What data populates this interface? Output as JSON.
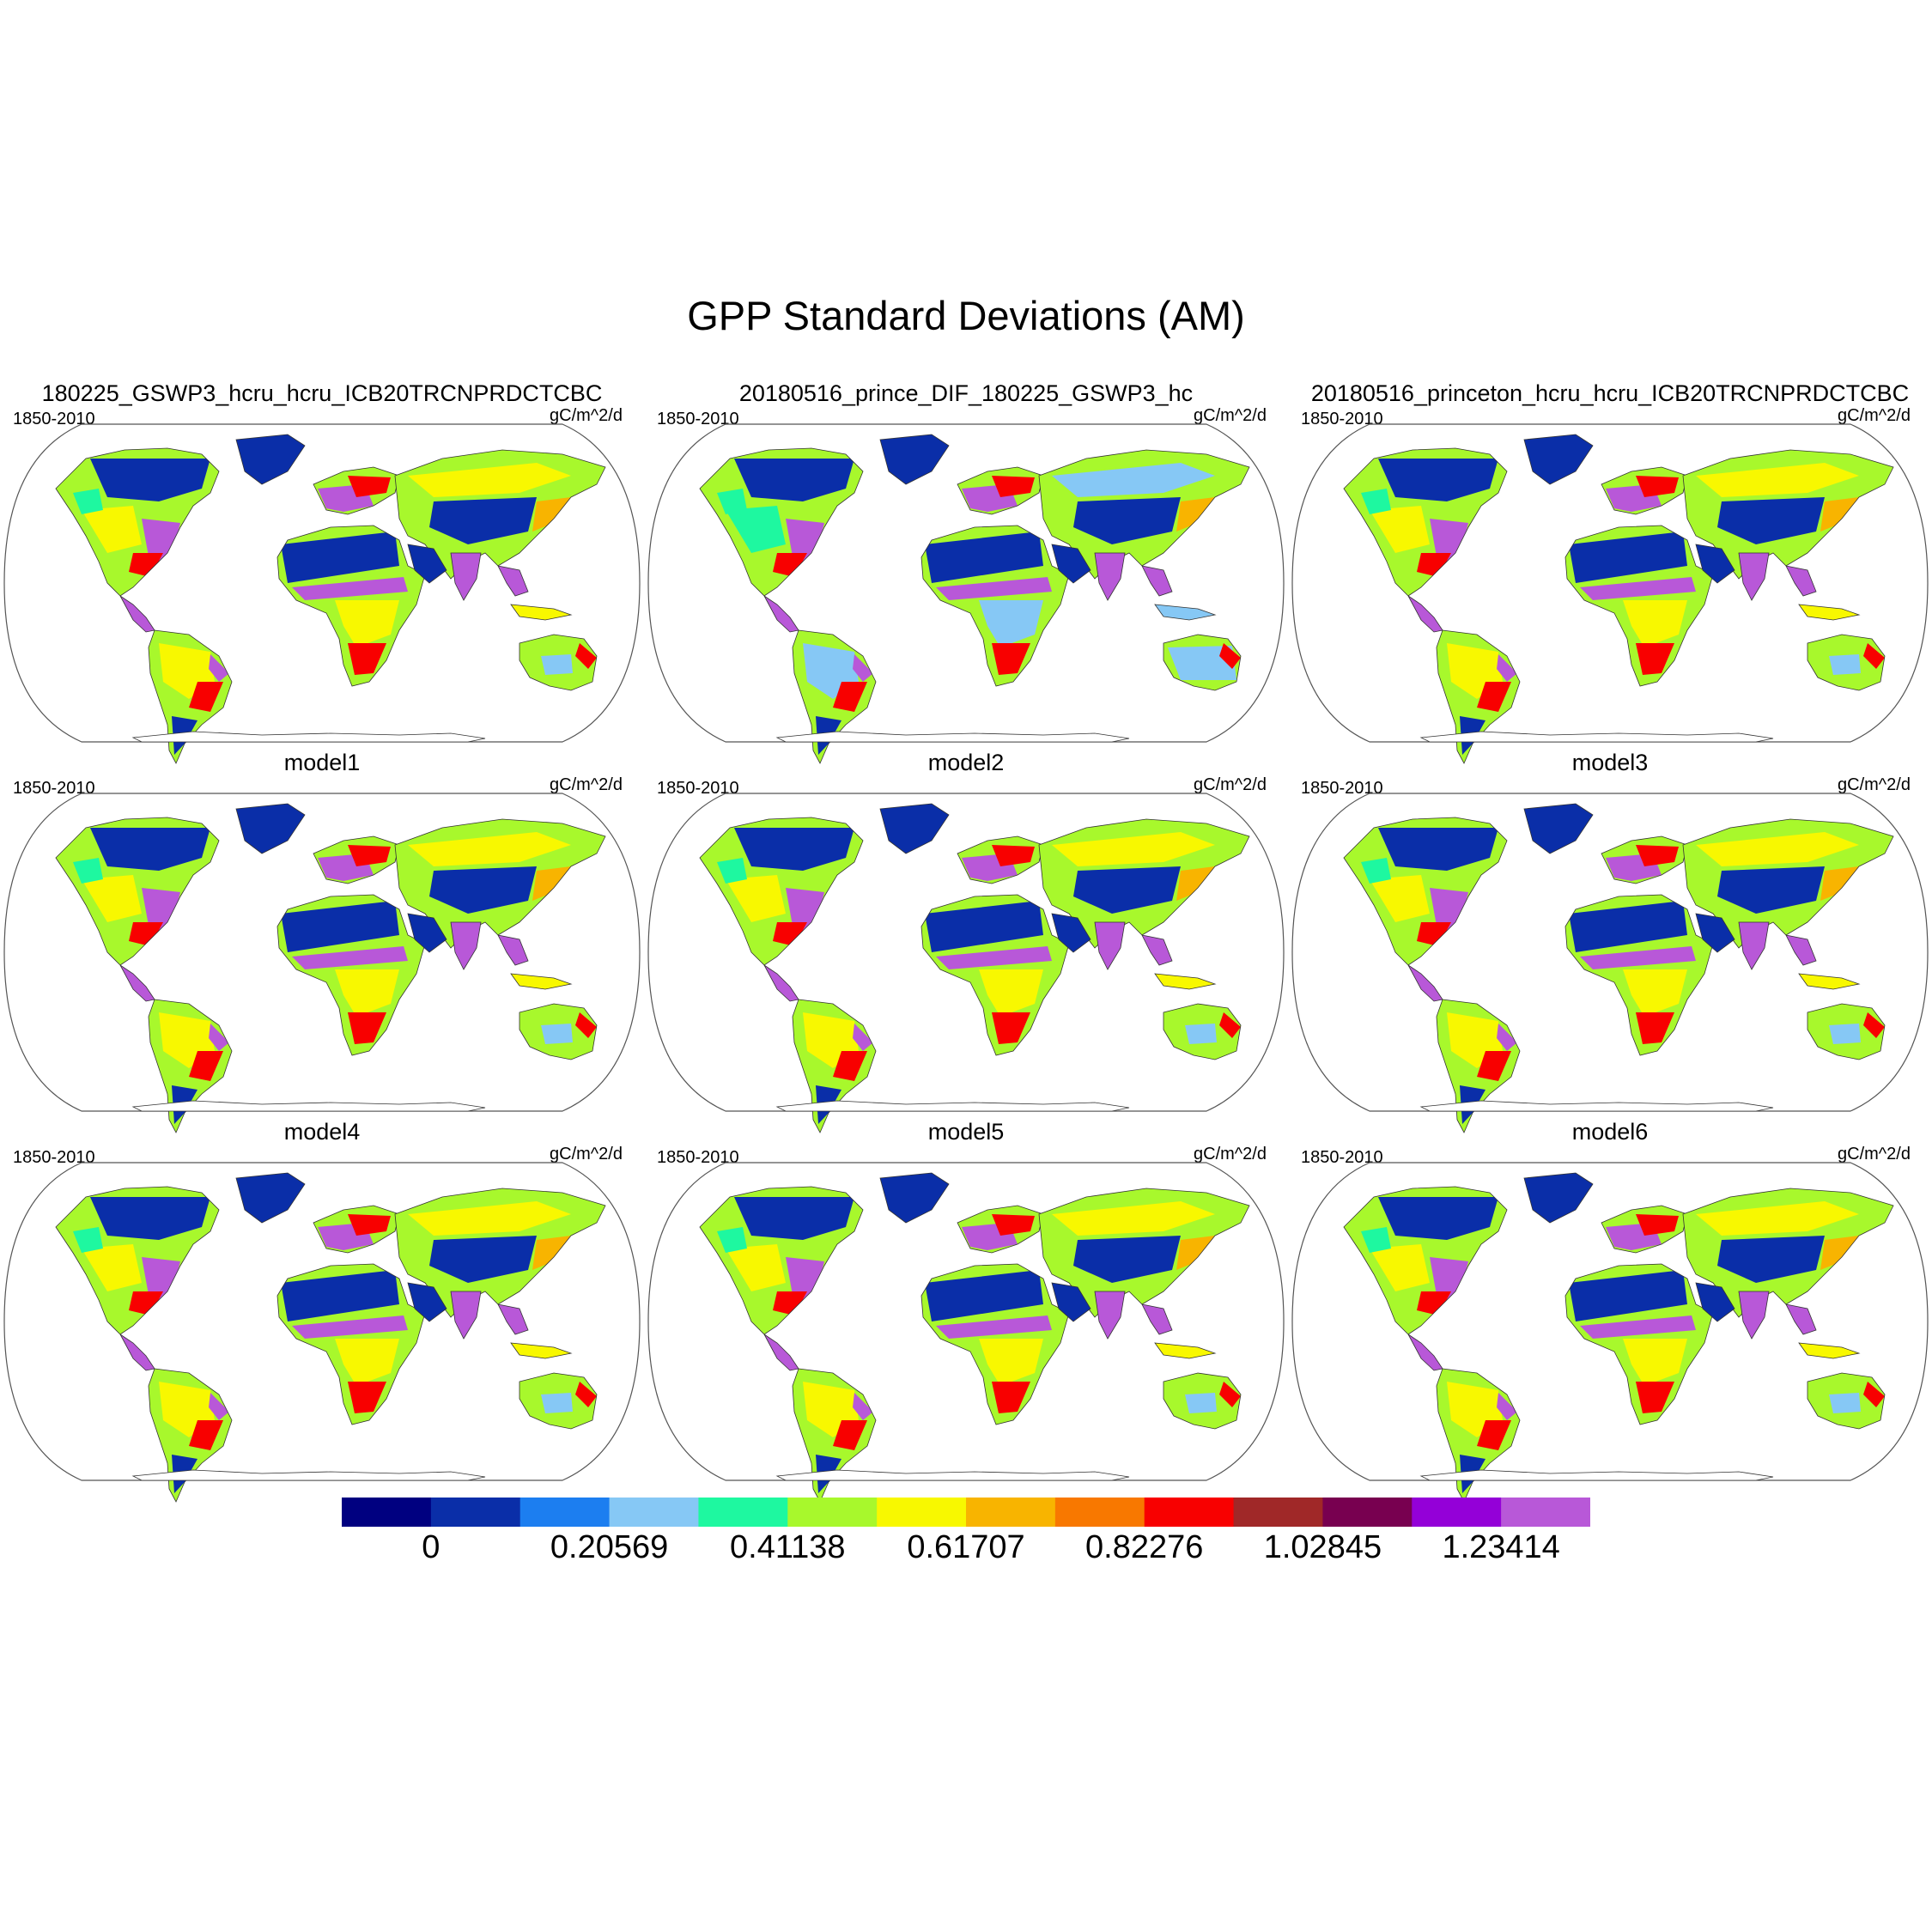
{
  "title": "GPP Standard Deviations (AM)",
  "panels": [
    {
      "title": "180225_GSWP3_hcru_hcru_ICB20TRCNPRDCTCBC",
      "left": "1850-2010",
      "right": "gC/m^2/d"
    },
    {
      "title": "20180516_prince_DIF_180225_GSWP3_hc",
      "left": "1850-2010",
      "right": "gC/m^2/d"
    },
    {
      "title": "20180516_princeton_hcru_hcru_ICB20TRCNPRDCTCBC",
      "left": "1850-2010",
      "right": "gC/m^2/d"
    },
    {
      "title": "model1",
      "left": "1850-2010",
      "right": "gC/m^2/d"
    },
    {
      "title": "model2",
      "left": "1850-2010",
      "right": "gC/m^2/d"
    },
    {
      "title": "model3",
      "left": "1850-2010",
      "right": "gC/m^2/d"
    },
    {
      "title": "model4",
      "left": "1850-2010",
      "right": "gC/m^2/d"
    },
    {
      "title": "model5",
      "left": "1850-2010",
      "right": "gC/m^2/d"
    },
    {
      "title": "model6",
      "left": "1850-2010",
      "right": "gC/m^2/d"
    }
  ],
  "colorbar": {
    "colors": [
      "#000080",
      "#0a2ea8",
      "#1c7ef0",
      "#86c8f5",
      "#1ef8a0",
      "#a8f82c",
      "#f8f800",
      "#f8b400",
      "#f87800",
      "#f80000",
      "#a02828",
      "#780050",
      "#9400d8",
      "#b858d8"
    ],
    "labels": [
      "0",
      "0.20569",
      "0.41138",
      "0.61707",
      "0.82276",
      "1.02845",
      "1.23414"
    ],
    "label_boundaries": [
      1,
      3,
      5,
      7,
      9,
      11,
      13
    ]
  },
  "land_colors": {
    "low": "#0a2ea8",
    "mid": "#f8f800",
    "high": "#b858d8",
    "red": "#f80000",
    "green": "#1ef8a0",
    "light": "#86c8f5",
    "orange": "#f8b400",
    "lime": "#a8f82c"
  }
}
